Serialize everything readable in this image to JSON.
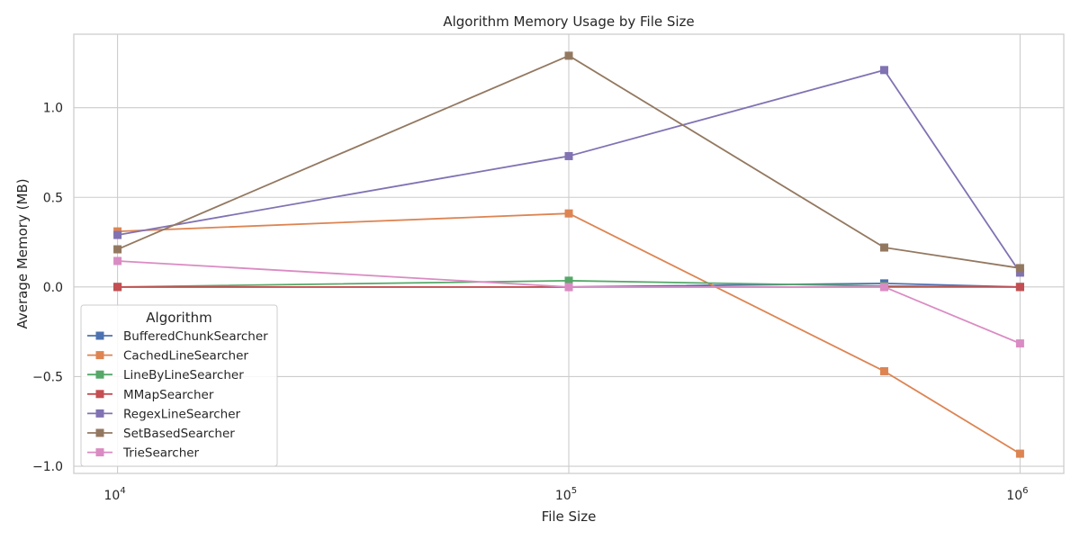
{
  "chart_data": {
    "type": "line",
    "title": "Algorithm Memory Usage by File Size",
    "xlabel": "File Size",
    "ylabel": "Average Memory (MB)",
    "xscale": "log",
    "x": [
      10000,
      100000,
      500000,
      1000000
    ],
    "xlim": [
      8000,
      1250000
    ],
    "ylim": [
      -1.04,
      1.41
    ],
    "xticks": [
      {
        "value": 10000,
        "base": "10",
        "exp": "4"
      },
      {
        "value": 100000,
        "base": "10",
        "exp": "5"
      },
      {
        "value": 1000000,
        "base": "10",
        "exp": "6"
      }
    ],
    "yticks": [
      {
        "value": -1.0,
        "label": "−1.0"
      },
      {
        "value": -0.5,
        "label": "−0.5"
      },
      {
        "value": 0.0,
        "label": "0.0"
      },
      {
        "value": 0.5,
        "label": "0.5"
      },
      {
        "value": 1.0,
        "label": "1.0"
      }
    ],
    "grid": true,
    "marker": "square",
    "legend": {
      "title": "Algorithm",
      "placement": "lower-left"
    },
    "series": [
      {
        "name": "BufferedChunkSearcher",
        "color": "#4c72b0",
        "values": [
          0.0,
          0.0,
          0.02,
          0.0
        ]
      },
      {
        "name": "CachedLineSearcher",
        "color": "#dd8452",
        "values": [
          0.31,
          0.41,
          -0.47,
          -0.93
        ]
      },
      {
        "name": "LineByLineSearcher",
        "color": "#55a868",
        "values": [
          0.0,
          0.035,
          0.005,
          0.0
        ]
      },
      {
        "name": "MMapSearcher",
        "color": "#c44e52",
        "values": [
          0.0,
          0.0,
          0.0,
          0.0
        ]
      },
      {
        "name": "RegexLineSearcher",
        "color": "#8172b3",
        "values": [
          0.29,
          0.73,
          1.21,
          0.08
        ]
      },
      {
        "name": "SetBasedSearcher",
        "color": "#937860",
        "values": [
          0.21,
          1.29,
          0.22,
          0.105
        ]
      },
      {
        "name": "TrieSearcher",
        "color": "#da8bc3",
        "values": [
          0.145,
          0.0,
          0.0,
          -0.315
        ]
      }
    ]
  }
}
